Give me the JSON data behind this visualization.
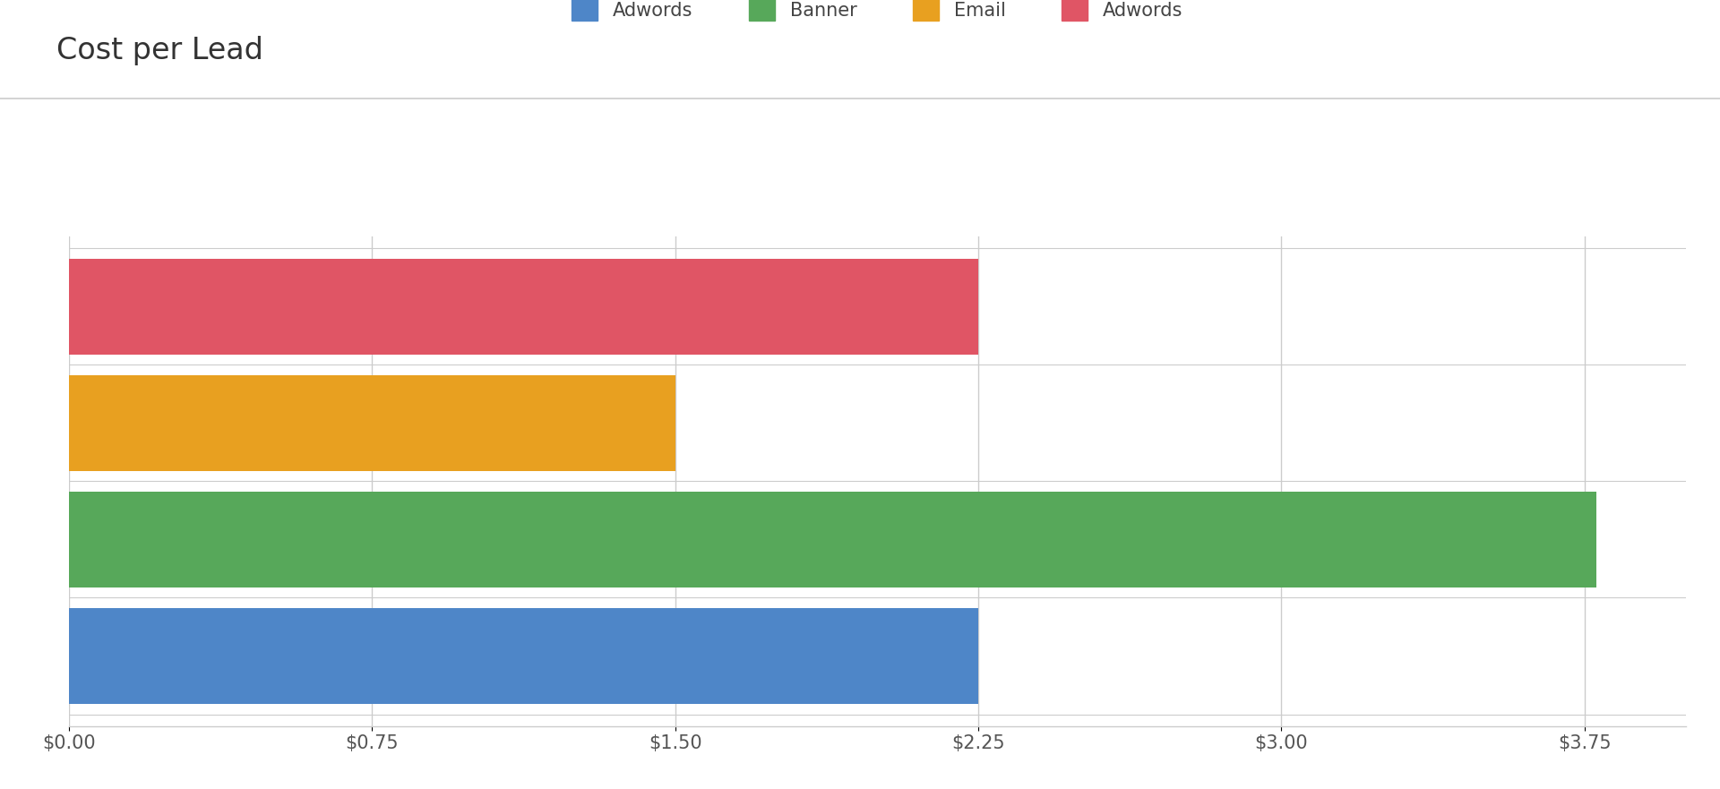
{
  "title": "Cost per Lead",
  "bars": [
    {
      "label": "Adwords",
      "value": 2.25,
      "color": "#4E86C8"
    },
    {
      "label": "Banner",
      "value": 3.78,
      "color": "#57A85A"
    },
    {
      "label": "Email",
      "value": 1.5,
      "color": "#E8A020"
    },
    {
      "label": "Adwords",
      "value": 2.25,
      "color": "#E05565"
    }
  ],
  "legend_entries": [
    {
      "label": "Adwords",
      "color": "#4E86C8"
    },
    {
      "label": "Banner",
      "color": "#57A85A"
    },
    {
      "label": "Email",
      "color": "#E8A020"
    },
    {
      "label": "Adwords",
      "color": "#E05565"
    }
  ],
  "xlim": [
    0,
    4.0
  ],
  "xticks": [
    0.0,
    0.75,
    1.5,
    2.25,
    3.0,
    3.75
  ],
  "xtick_labels": [
    "$0.00",
    "$0.75",
    "$1.50",
    "$2.25",
    "$3.00",
    "$3.75"
  ],
  "background_color": "#FFFFFF",
  "grid_color": "#CCCCCC",
  "title_fontsize": 24,
  "tick_fontsize": 15,
  "legend_fontsize": 15,
  "bar_height": 0.82
}
